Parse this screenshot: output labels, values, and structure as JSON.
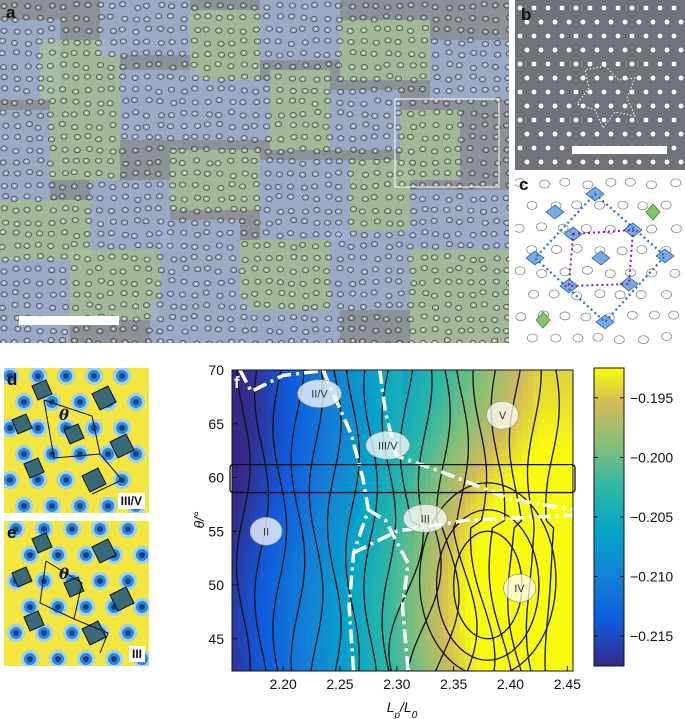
{
  "panels": {
    "a": {
      "label": "a"
    },
    "b": {
      "label": "b"
    },
    "c": {
      "label": "c"
    },
    "d": {
      "label": "d",
      "tag": "III/V",
      "angle_symbol": "θ"
    },
    "e": {
      "label": "e",
      "tag": "III",
      "angle_symbol": "θ"
    },
    "f": {
      "label": "f"
    }
  },
  "colors": {
    "sem_gray": "#8a8f95",
    "region_blue": "#9fb1d6",
    "region_green": "#a9c49a",
    "sim_yellow": "#f4e640",
    "sim_blue": "#2a8ad6",
    "contour_line": "#111111",
    "boundary_dashed": "#ffffff"
  },
  "chart_data": {
    "type": "heatmap",
    "xlabel": "Lp/L0",
    "ylabel": "θ/°",
    "x_ticks": [
      "2.20",
      "2.25",
      "2.30",
      "2.35",
      "2.40",
      "2.45"
    ],
    "y_ticks": [
      "45",
      "50",
      "55",
      "60",
      "65",
      "70"
    ],
    "xlim": [
      2.155,
      2.455
    ],
    "ylim": [
      42,
      70
    ],
    "colorbar": {
      "ticks": [
        "−0.195",
        "−0.200",
        "−0.205",
        "−0.210",
        "−0.215"
      ],
      "tick_values": [
        -0.195,
        -0.2,
        -0.205,
        -0.21,
        -0.215
      ],
      "range": [
        -0.2175,
        -0.1925
      ],
      "colormap": "parula"
    },
    "phase_labels": [
      {
        "name": "II/V",
        "x": 2.232,
        "y": 67.8
      },
      {
        "name": "III/V",
        "x": 2.292,
        "y": 63.0
      },
      {
        "name": "V",
        "x": 2.393,
        "y": 65.8
      },
      {
        "name": "II",
        "x": 2.185,
        "y": 55.0
      },
      {
        "name": "III",
        "x": 2.325,
        "y": 56.2
      },
      {
        "name": "IV",
        "x": 2.408,
        "y": 49.7
      }
    ],
    "highlight_band": {
      "y_min": 58.6,
      "y_max": 61.2
    },
    "boundary_markers": {
      "note": "white dashed lines separate phase regions"
    }
  }
}
